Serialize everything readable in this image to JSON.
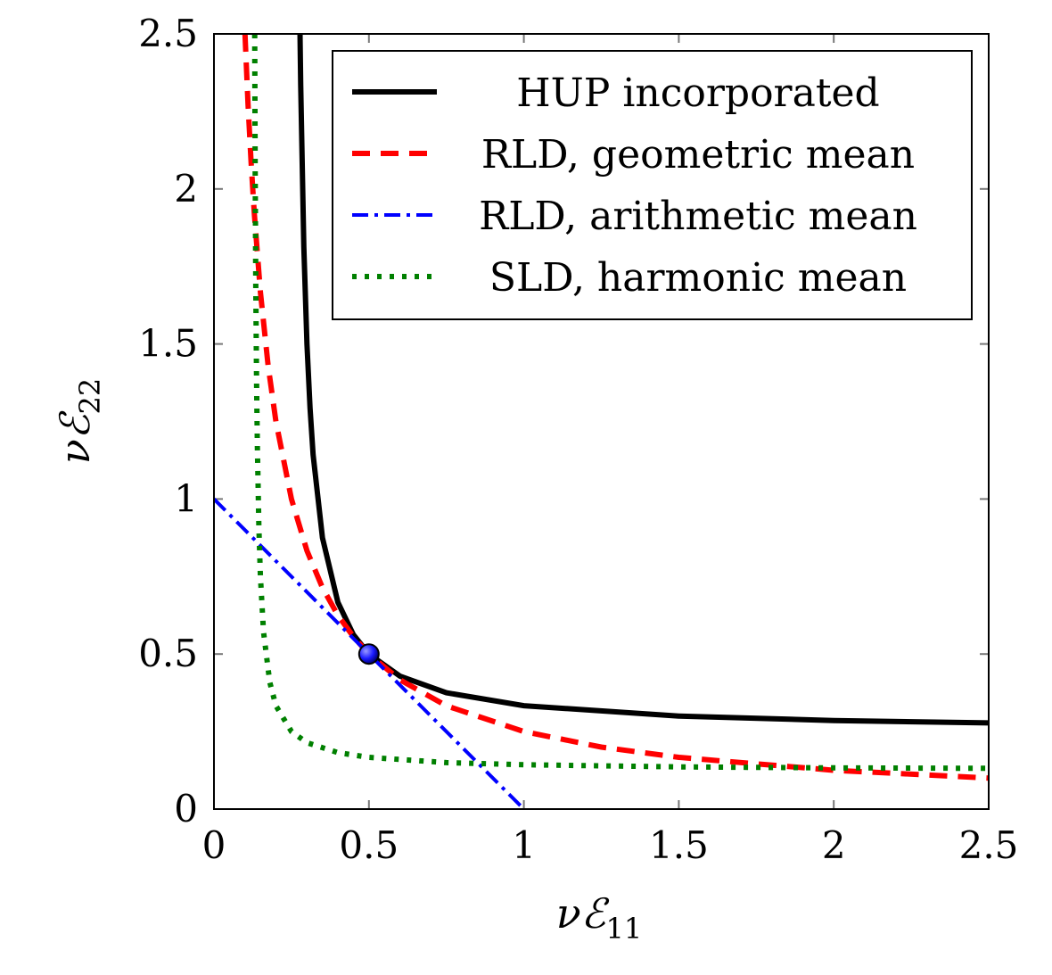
{
  "chart_data": {
    "type": "line",
    "title": "",
    "xlabel": "νℰ",
    "xlabel_sub": "11",
    "ylabel": "νℰ",
    "ylabel_sub": "22",
    "xlim": [
      0,
      2.5
    ],
    "ylim": [
      0,
      2.5
    ],
    "xticks": [
      0,
      0.5,
      1,
      1.5,
      2,
      2.5
    ],
    "yticks": [
      0,
      0.5,
      1,
      1.5,
      2,
      2.5
    ],
    "xtick_labels": [
      "0",
      "0.5",
      "1",
      "1.5",
      "2",
      "2.5"
    ],
    "ytick_labels": [
      "0",
      "0.5",
      "1",
      "1.5",
      "2",
      "2.5"
    ],
    "grid": false,
    "legend_position": "top-right",
    "series": [
      {
        "name": "HUP incorporated",
        "color": "#000000",
        "style": "solid",
        "x": [
          0.277,
          0.278,
          0.28,
          0.29,
          0.3,
          0.31,
          0.32,
          0.35,
          0.4,
          0.45,
          0.5,
          0.6,
          0.75,
          1,
          1.5,
          2,
          2.5
        ],
        "y": [
          2.565,
          2.482,
          2.333,
          1.8125,
          1.5,
          1.292,
          1.143,
          0.875,
          0.667,
          0.5625,
          0.5,
          0.4286,
          0.375,
          0.3333,
          0.3,
          0.2857,
          0.2778
        ]
      },
      {
        "name": "RLD, geometric mean",
        "color": "#ff0000",
        "style": "dashed",
        "x": [
          0.1,
          0.11,
          0.12,
          0.13,
          0.15,
          0.175,
          0.2,
          0.25,
          0.3,
          0.35,
          0.4,
          0.45,
          0.5,
          0.6,
          0.75,
          1,
          1.25,
          1.5,
          2,
          2.5
        ],
        "y": [
          2.5,
          2.273,
          2.083,
          1.923,
          1.667,
          1.429,
          1.25,
          1,
          0.833,
          0.714,
          0.625,
          0.556,
          0.5,
          0.417,
          0.333,
          0.25,
          0.2,
          0.167,
          0.125,
          0.1
        ]
      },
      {
        "name": "RLD, arithmetic mean",
        "color": "#0000ff",
        "style": "dashdot",
        "x": [
          0,
          1
        ],
        "y": [
          1,
          0
        ]
      },
      {
        "name": "SLD, harmonic mean",
        "color": "#008000",
        "style": "dotted",
        "x": [
          0.1316,
          0.133,
          0.135,
          0.1375,
          0.14,
          0.145,
          0.15,
          0.16,
          0.18,
          0.2,
          0.25,
          0.3,
          0.4,
          0.5,
          0.75,
          1,
          1.5,
          2,
          2.5
        ],
        "y": [
          2.5,
          2.078,
          1.6875,
          1.375,
          1.167,
          0.906,
          0.75,
          0.571,
          0.409,
          0.333,
          0.25,
          0.214,
          0.182,
          0.167,
          0.15,
          0.143,
          0.136,
          0.133,
          0.1316
        ]
      }
    ],
    "markers": [
      {
        "x": 0.5,
        "y": 0.5,
        "color": "#1a1aff"
      }
    ]
  }
}
